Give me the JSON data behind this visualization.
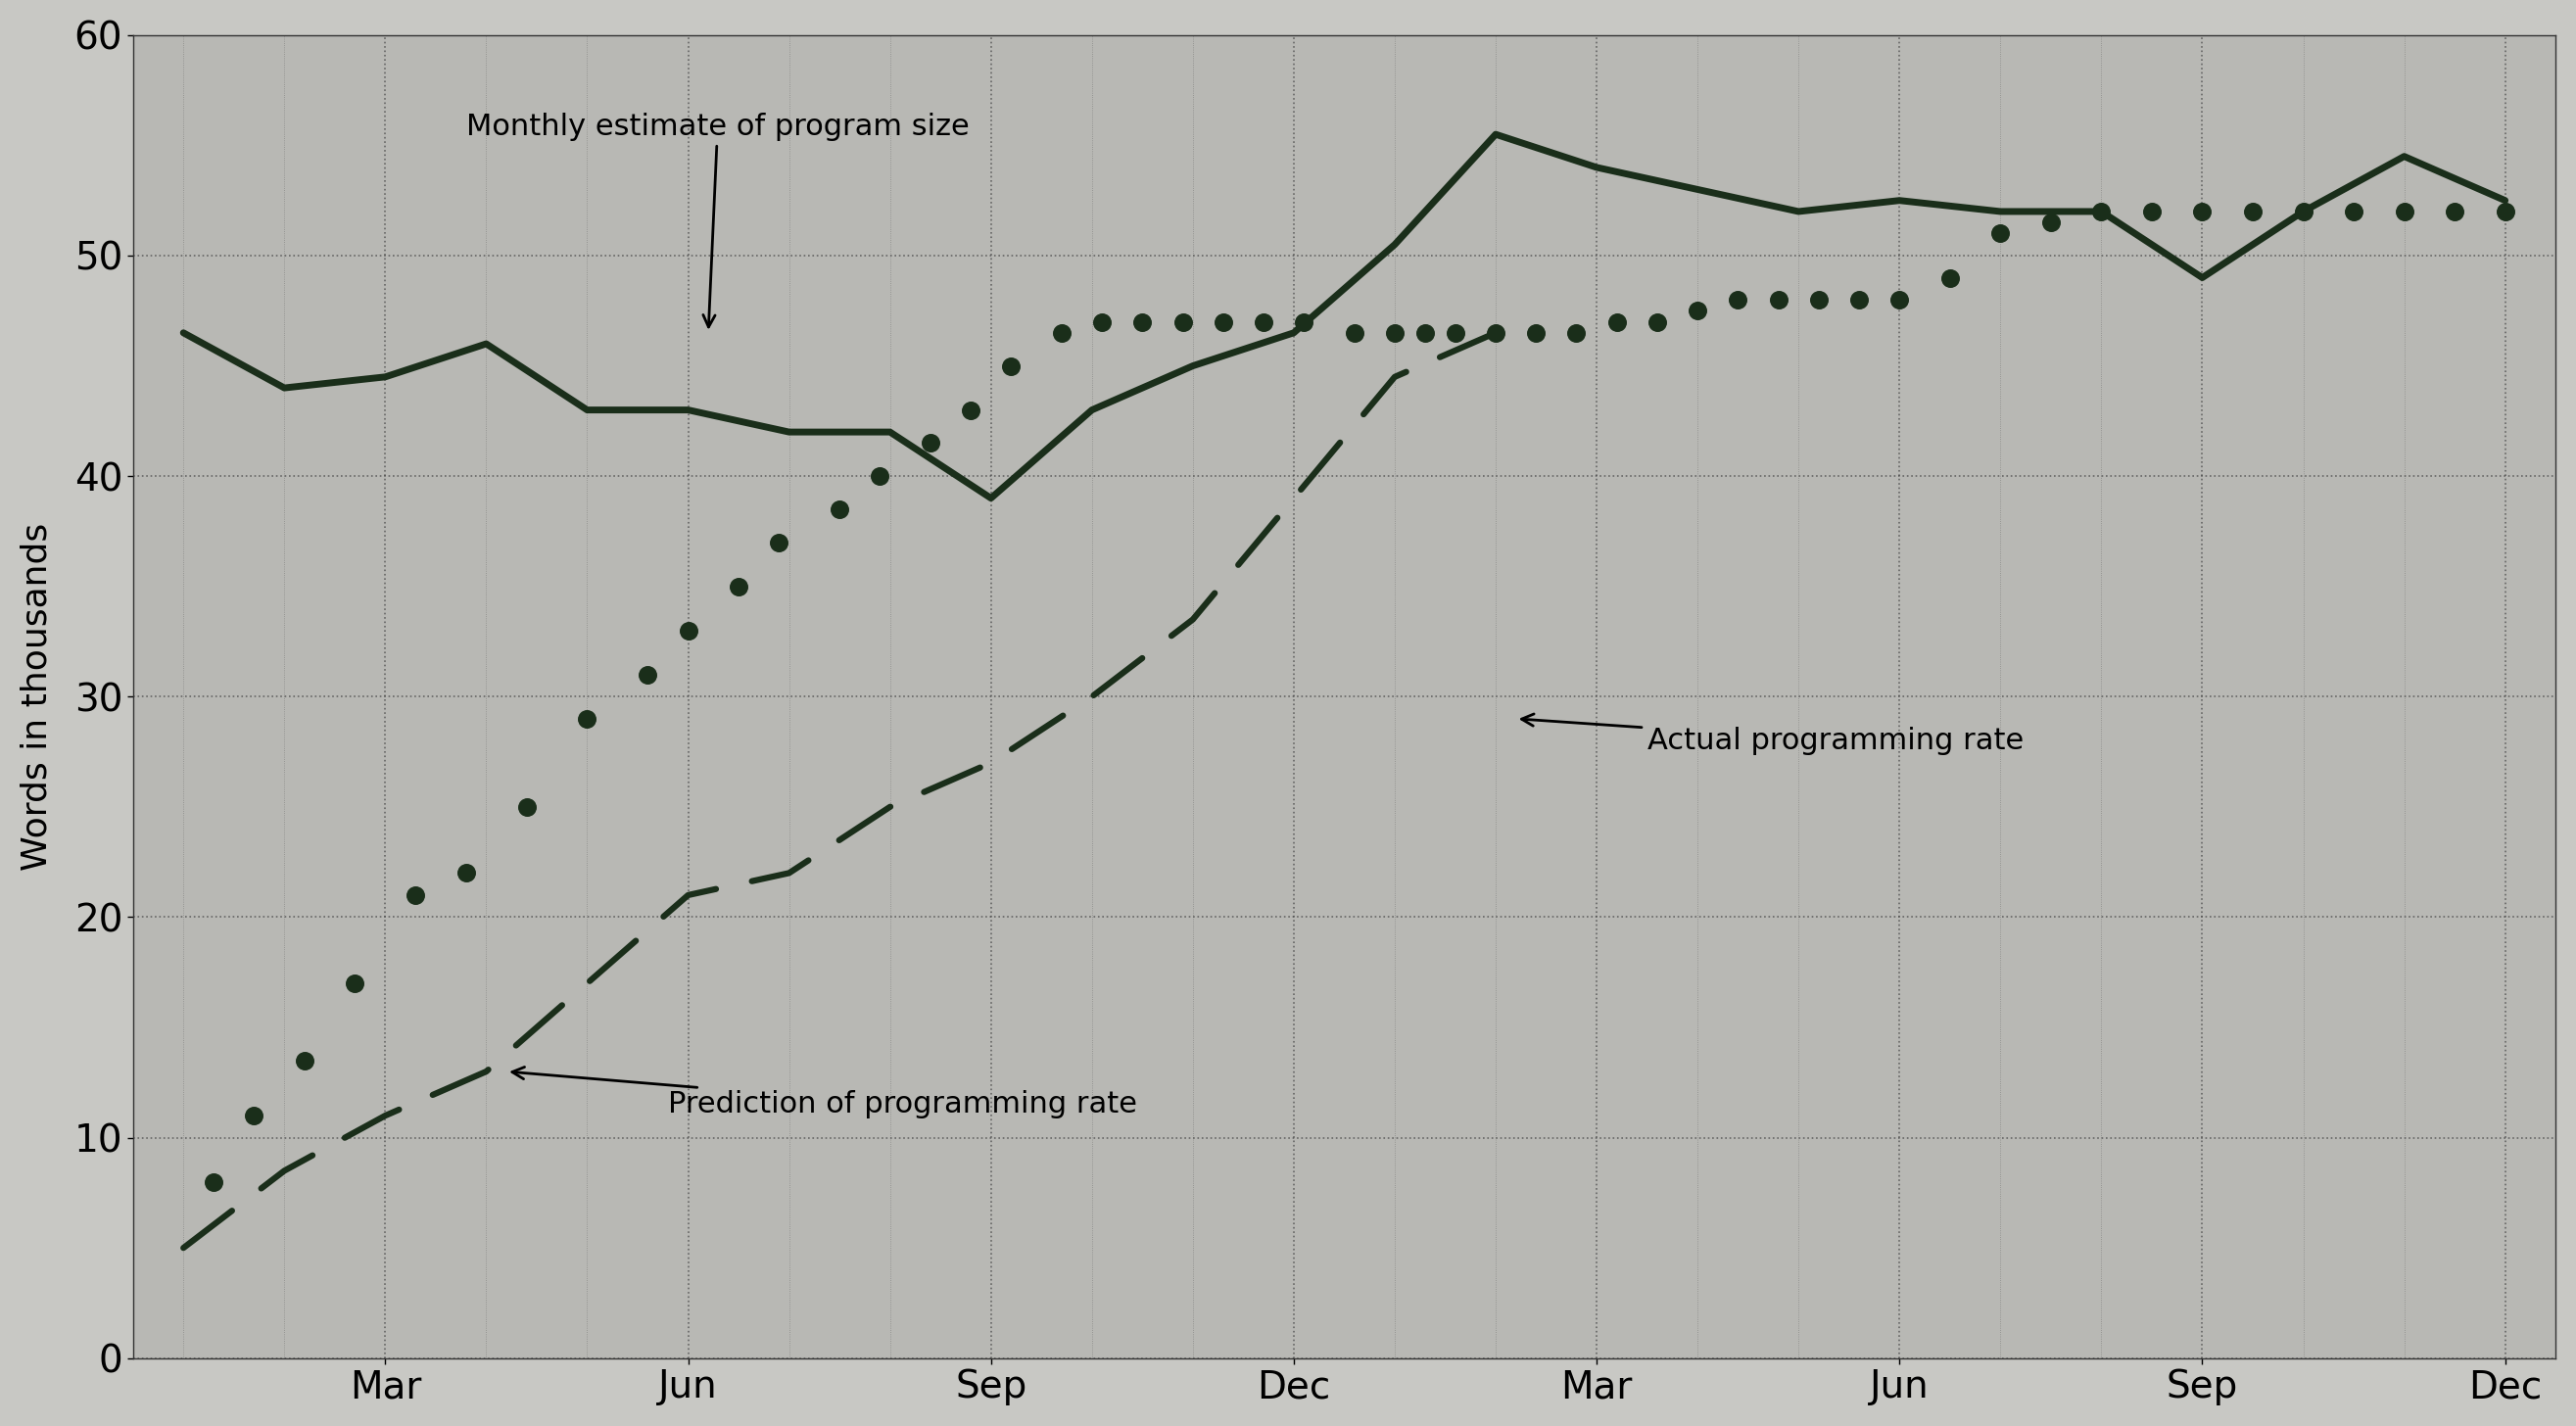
{
  "background_color": "#c8c8c4",
  "plot_bg_color": "#b8b8b4",
  "grid_color": "#444444",
  "line_color": "#1a2e1a",
  "dot_color": "#1a2e1a",
  "ylabel": "Words in thousands",
  "ylim": [
    0,
    60
  ],
  "yticks": [
    0,
    10,
    20,
    30,
    40,
    50,
    60
  ],
  "xtick_positions": [
    2,
    5,
    8,
    11,
    14,
    17,
    20,
    23
  ],
  "xtick_labels": [
    "Mar",
    "Jun",
    "Sep",
    "Dec",
    "Mar",
    "Jun",
    "Sep",
    "Dec"
  ],
  "annotation_estimate": "Monthly estimate of program size",
  "annotation_actual": "Actual programming rate",
  "annotation_prediction": "Prediction of programming rate",
  "estimate_x": [
    0,
    1,
    2,
    3,
    4,
    5,
    6,
    7,
    8,
    9,
    10,
    11,
    12,
    13,
    14,
    15,
    16,
    17,
    18,
    19,
    20,
    21,
    22,
    23
  ],
  "estimate_y": [
    46.5,
    44.0,
    44.5,
    46.0,
    43.0,
    43.0,
    42.0,
    42.0,
    39.0,
    43.0,
    45.0,
    46.5,
    50.5,
    55.5,
    54.0,
    53.0,
    52.0,
    52.5,
    52.0,
    52.0,
    49.0,
    52.0,
    54.5,
    52.5
  ],
  "prediction_x": [
    0,
    1,
    2,
    3,
    4,
    5,
    6,
    7,
    8,
    9,
    10,
    11,
    12,
    13
  ],
  "prediction_y": [
    5.0,
    8.5,
    11.0,
    13.0,
    17.0,
    21.0,
    22.0,
    25.0,
    27.0,
    30.0,
    33.5,
    39.0,
    44.5,
    46.5
  ],
  "actual_x": [
    0.3,
    0.7,
    1.2,
    1.7,
    2.3,
    2.8,
    3.4,
    4.0,
    4.6,
    5.0,
    5.5,
    5.9,
    6.5,
    6.9,
    7.4,
    7.8,
    8.2,
    8.7,
    9.1,
    9.5,
    9.9,
    10.3,
    10.7,
    11.1,
    11.6,
    12.0,
    12.3,
    12.6,
    13.0,
    13.4,
    13.8,
    14.2,
    14.6,
    15.0,
    15.4,
    15.8,
    16.2,
    16.6,
    17.0,
    17.5,
    18.0,
    18.5,
    19.0,
    19.5,
    20.0,
    20.5,
    21.0,
    21.5,
    22.0,
    22.5,
    23.0
  ],
  "actual_y": [
    8.0,
    11.0,
    13.5,
    17.0,
    21.0,
    22.0,
    25.0,
    29.0,
    31.0,
    33.0,
    35.0,
    37.0,
    38.5,
    40.0,
    41.5,
    43.0,
    45.0,
    46.5,
    47.0,
    47.0,
    47.0,
    47.0,
    47.0,
    47.0,
    46.5,
    46.5,
    46.5,
    46.5,
    46.5,
    46.5,
    46.5,
    47.0,
    47.0,
    47.5,
    48.0,
    48.0,
    48.0,
    48.0,
    48.0,
    49.0,
    51.0,
    51.5,
    52.0,
    52.0,
    52.0,
    52.0,
    52.0,
    52.0,
    52.0,
    52.0,
    52.0
  ]
}
